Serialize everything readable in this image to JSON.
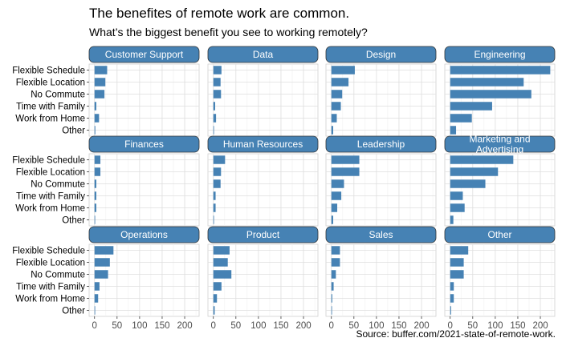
{
  "title": "The benefites of remote work are common.",
  "subtitle": "What’s the biggest benefit you see to working remotely?",
  "caption": "Source: buffer.com/2021-state-of-remote-work.",
  "chart_data": {
    "type": "bar",
    "orientation": "horizontal",
    "facet_layout": "4 columns x 3 rows",
    "categories": [
      "Flexible Schedule",
      "Flexible Location",
      "No Commute",
      "Time with Family",
      "Work from Home",
      "Other"
    ],
    "x_ticks": [
      0,
      50,
      100,
      150,
      200
    ],
    "xlim": [
      -12,
      232
    ],
    "bar_color": "#4682B4",
    "strip_color": "#4682B4",
    "grid": true,
    "facets": [
      {
        "name": "Customer Support",
        "values": [
          28,
          24,
          22,
          4,
          10,
          1
        ]
      },
      {
        "name": "Data",
        "values": [
          18,
          16,
          17,
          4,
          6,
          0
        ]
      },
      {
        "name": "Design",
        "values": [
          52,
          38,
          24,
          21,
          12,
          4
        ]
      },
      {
        "name": "Engineering",
        "values": [
          222,
          163,
          180,
          93,
          48,
          13
        ]
      },
      {
        "name": "Finances",
        "values": [
          13,
          13,
          4,
          4,
          4,
          0
        ]
      },
      {
        "name": "Human Resources",
        "values": [
          26,
          17,
          16,
          5,
          5,
          0
        ]
      },
      {
        "name": "Leadership",
        "values": [
          62,
          62,
          28,
          22,
          13,
          4
        ]
      },
      {
        "name": "Marketing and\nAdvertising",
        "values": [
          140,
          106,
          78,
          28,
          32,
          7
        ]
      },
      {
        "name": "Operations",
        "values": [
          42,
          34,
          30,
          11,
          8,
          0
        ]
      },
      {
        "name": "Product",
        "values": [
          36,
          32,
          40,
          18,
          8,
          3
        ]
      },
      {
        "name": "Sales",
        "values": [
          19,
          19,
          10,
          5,
          2,
          0
        ]
      },
      {
        "name": "Other",
        "values": [
          40,
          30,
          30,
          8,
          8,
          2
        ]
      }
    ]
  }
}
